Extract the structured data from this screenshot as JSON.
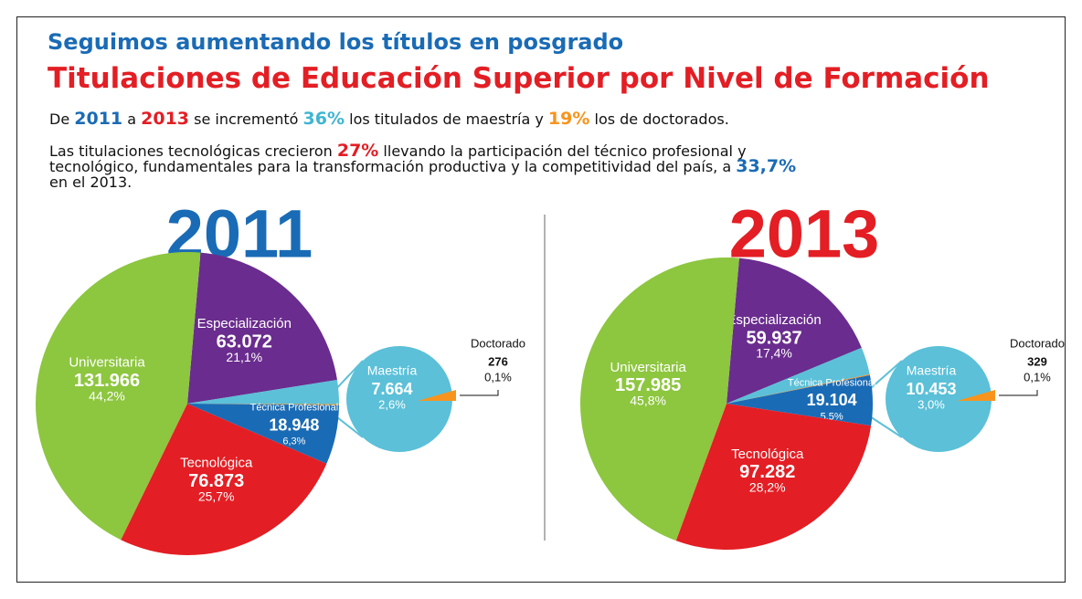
{
  "header": {
    "kicker": "Seguimos aumentando los títulos en posgrado",
    "title": "Titulaciones de Educación Superior por Nivel de Formación",
    "paragraphs": [
      [
        {
          "text": "De "
        },
        {
          "text": "2011",
          "color": "#1a6bb5"
        },
        {
          "text": " a "
        },
        {
          "text": "2013",
          "color": "#e31e24"
        },
        {
          "text": " se incrementó "
        },
        {
          "text": "36%",
          "color": "#3fb5d3"
        },
        {
          "text": " los titulados de maestría y "
        },
        {
          "text": "19%",
          "color": "#f7941d"
        },
        {
          "text": " los de doctorados."
        }
      ],
      [
        {
          "text": "Las titulaciones tecnológicas crecieron "
        },
        {
          "text": "27%",
          "color": "#e31e24"
        },
        {
          "text": " llevando la participación del técnico profesional y tecnológico, fundamentales para la transformación productiva y la competitividad del país, a "
        },
        {
          "text": "33,7%",
          "color": "#1a6bb5"
        },
        {
          "text": " en el 2013."
        }
      ]
    ]
  },
  "chart_data": [
    {
      "type": "pie",
      "title": "2011",
      "title_color": "#1a6bb5",
      "categories": [
        "Especialización",
        "Maestría",
        "Doctorado",
        "Técnica Profesional",
        "Tecnológica",
        "Universitaria"
      ],
      "values": [
        63072,
        7664,
        276,
        18948,
        76873,
        131966
      ],
      "value_labels": [
        "63.072",
        "7.664",
        "276",
        "18.948",
        "76.873",
        "131.966"
      ],
      "percentages": [
        21.1,
        2.6,
        0.1,
        6.3,
        25.7,
        44.2
      ],
      "percentage_labels": [
        "21,1%",
        "2,6%",
        "0,1%",
        "6,3%",
        "25,7%",
        "44,2%"
      ],
      "colors": [
        "#6a2c8e",
        "#5bc0d8",
        "#f7941d",
        "#1a6bb5",
        "#e31e24",
        "#8dc63f"
      ]
    },
    {
      "type": "pie",
      "title": "2013",
      "title_color": "#e31e24",
      "categories": [
        "Especialización",
        "Maestría",
        "Doctorado",
        "Técnica Profesional",
        "Tecnológica",
        "Universitaria"
      ],
      "values": [
        59937,
        10453,
        329,
        19104,
        97282,
        157985
      ],
      "value_labels": [
        "59.937",
        "10.453",
        "329",
        "19.104",
        "97.282",
        "157.985"
      ],
      "percentages": [
        17.4,
        3.0,
        0.1,
        5.5,
        28.2,
        45.8
      ],
      "percentage_labels": [
        "17,4%",
        "3,0%",
        "0,1%",
        "5,5%",
        "28,2%",
        "45,8%"
      ],
      "colors": [
        "#6a2c8e",
        "#5bc0d8",
        "#f7941d",
        "#1a6bb5",
        "#e31e24",
        "#8dc63f"
      ]
    }
  ]
}
